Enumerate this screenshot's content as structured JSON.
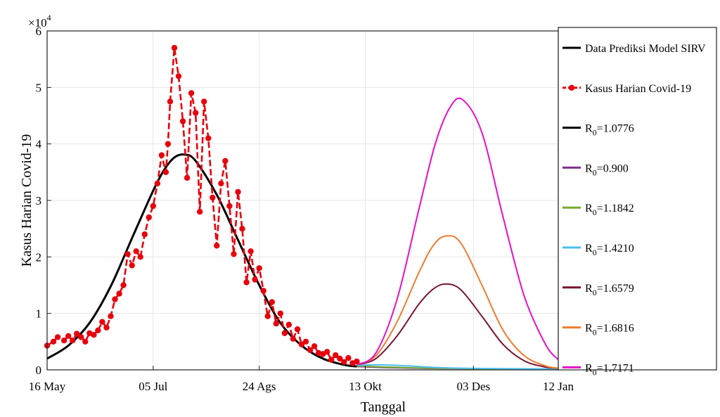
{
  "chart_data": {
    "type": "line",
    "xlabel": "Tanggal",
    "ylabel": "Kasus Harian Covid-19",
    "y_multiplier": "×10",
    "y_multiplier_exp": "4",
    "x_ticks": [
      {
        "day": 0,
        "label": "16 May"
      },
      {
        "day": 50,
        "label": "05 Jul"
      },
      {
        "day": 100,
        "label": "24 Ags"
      },
      {
        "day": 150,
        "label": "13 Okt"
      },
      {
        "day": 201,
        "label": "03 Des"
      },
      {
        "day": 241,
        "label": "12 Jan"
      }
    ],
    "y_ticks": [
      {
        "value": 0,
        "label": "0"
      },
      {
        "value": 10000,
        "label": "1"
      },
      {
        "value": 20000,
        "label": "2"
      },
      {
        "value": 30000,
        "label": "3"
      },
      {
        "value": 40000,
        "label": "4"
      },
      {
        "value": 50000,
        "label": "5"
      },
      {
        "value": 60000,
        "label": "6"
      }
    ],
    "ylim": [
      0,
      60000
    ],
    "grid": true,
    "legend_position": "right",
    "legend": [
      {
        "label": "Data Prediksi Model SIRV",
        "sub": "",
        "rest": "",
        "color": "#000000",
        "marker": false
      },
      {
        "label": "Kasus Harian Covid-19",
        "sub": "",
        "rest": "",
        "color": "#e8000b",
        "marker": true,
        "dashed": true
      },
      {
        "label": "R",
        "sub": "0",
        "rest": "=1.0776",
        "color": "#000000",
        "marker": false
      },
      {
        "label": "R",
        "sub": "0",
        "rest": "=0.900",
        "color": "#7e2f8e",
        "marker": false
      },
      {
        "label": "R",
        "sub": "0",
        "rest": "=1.1842",
        "color": "#77ac30",
        "marker": false
      },
      {
        "label": "R",
        "sub": "0",
        "rest": "=1.4210",
        "color": "#4dbeee",
        "marker": false
      },
      {
        "label": "R",
        "sub": "0",
        "rest": "=1.6579",
        "color": "#7a1530",
        "marker": false
      },
      {
        "label": "R",
        "sub": "0",
        "rest": "=1.6816",
        "color": "#f07c30",
        "marker": false
      },
      {
        "label": "R",
        "sub": "0",
        "rest": "=1.7171",
        "color": "#e410c8",
        "marker": false
      }
    ],
    "series": [
      {
        "name": "Data Prediksi Model SIRV",
        "color": "#000000",
        "x": [
          0,
          10,
          20,
          30,
          40,
          50,
          55,
          60,
          65,
          70,
          80,
          90,
          100,
          110,
          120,
          130,
          140,
          146
        ],
        "y": [
          2000,
          4300,
          8300,
          14800,
          23300,
          31700,
          35300,
          37600,
          38100,
          37000,
          31000,
          23000,
          15000,
          8300,
          4300,
          2000,
          900,
          600
        ]
      },
      {
        "name": "Kasus Harian Covid-19",
        "color": "#e8000b",
        "x": [
          0,
          3,
          5,
          8,
          10,
          12,
          14,
          16,
          18,
          20,
          22,
          24,
          26,
          28,
          30,
          32,
          34,
          36,
          38,
          40,
          42,
          44,
          46,
          48,
          50,
          52,
          54,
          56,
          57,
          58,
          60,
          62,
          64,
          66,
          68,
          70,
          72,
          74,
          76,
          78,
          80,
          82,
          84,
          86,
          88,
          90,
          92,
          94,
          96,
          98,
          100,
          102,
          104,
          106,
          108,
          110,
          112,
          114,
          116,
          118,
          120,
          122,
          124,
          126,
          128,
          130,
          132,
          134,
          136,
          138,
          140,
          142,
          144,
          146
        ],
        "y": [
          4300,
          5000,
          5800,
          5200,
          6000,
          5200,
          6400,
          5800,
          5000,
          6500,
          6200,
          7000,
          8500,
          7500,
          9500,
          12500,
          13500,
          15000,
          20500,
          18500,
          21000,
          20000,
          24000,
          27000,
          29000,
          33000,
          38000,
          35000,
          40000,
          47500,
          57000,
          52000,
          44000,
          34000,
          49000,
          45500,
          28000,
          47500,
          41000,
          30500,
          22000,
          33000,
          37000,
          29000,
          20500,
          31500,
          25000,
          15500,
          21000,
          16000,
          18000,
          14000,
          9500,
          12000,
          8200,
          10000,
          6500,
          8000,
          5500,
          7200,
          4500,
          5000,
          3500,
          4200,
          3000,
          2800,
          3200,
          1800,
          2600,
          2000,
          1400,
          2100,
          1200,
          1500
        ]
      },
      {
        "name": "R0=0.900",
        "color": "#7e2f8e",
        "x": [
          146,
          160,
          180,
          200,
          220,
          241
        ],
        "y": [
          600,
          400,
          250,
          200,
          180,
          170
        ]
      },
      {
        "name": "R0=1.1842",
        "color": "#77ac30",
        "x": [
          146,
          160,
          180,
          200,
          220,
          241
        ],
        "y": [
          700,
          500,
          300,
          200,
          180,
          170
        ]
      },
      {
        "name": "R0=1.4210",
        "color": "#4dbeee",
        "x": [
          146,
          155,
          165,
          175,
          185,
          195,
          205,
          220,
          241
        ],
        "y": [
          800,
          900,
          800,
          600,
          400,
          300,
          250,
          200,
          200
        ]
      },
      {
        "name": "R0=1.6579",
        "color": "#7a1530",
        "x": [
          146,
          155,
          165,
          175,
          182,
          188,
          195,
          205,
          215,
          225,
          235,
          241
        ],
        "y": [
          900,
          2000,
          6000,
          11500,
          14300,
          15200,
          14200,
          9500,
          4500,
          1600,
          500,
          300
        ]
      },
      {
        "name": "R0=1.6816",
        "color": "#f07c30",
        "x": [
          146,
          155,
          165,
          175,
          182,
          188,
          195,
          205,
          215,
          225,
          235,
          241
        ],
        "y": [
          900,
          2500,
          8500,
          17000,
          22000,
          23700,
          22500,
          15000,
          7000,
          2500,
          700,
          300
        ]
      },
      {
        "name": "R0=1.7171",
        "color": "#e410c8",
        "x": [
          146,
          155,
          165,
          175,
          183,
          190,
          196,
          205,
          215,
          225,
          235,
          241
        ],
        "y": [
          900,
          3000,
          12500,
          28000,
          40000,
          46500,
          47800,
          42000,
          27000,
          13000,
          4500,
          1800
        ]
      }
    ]
  }
}
